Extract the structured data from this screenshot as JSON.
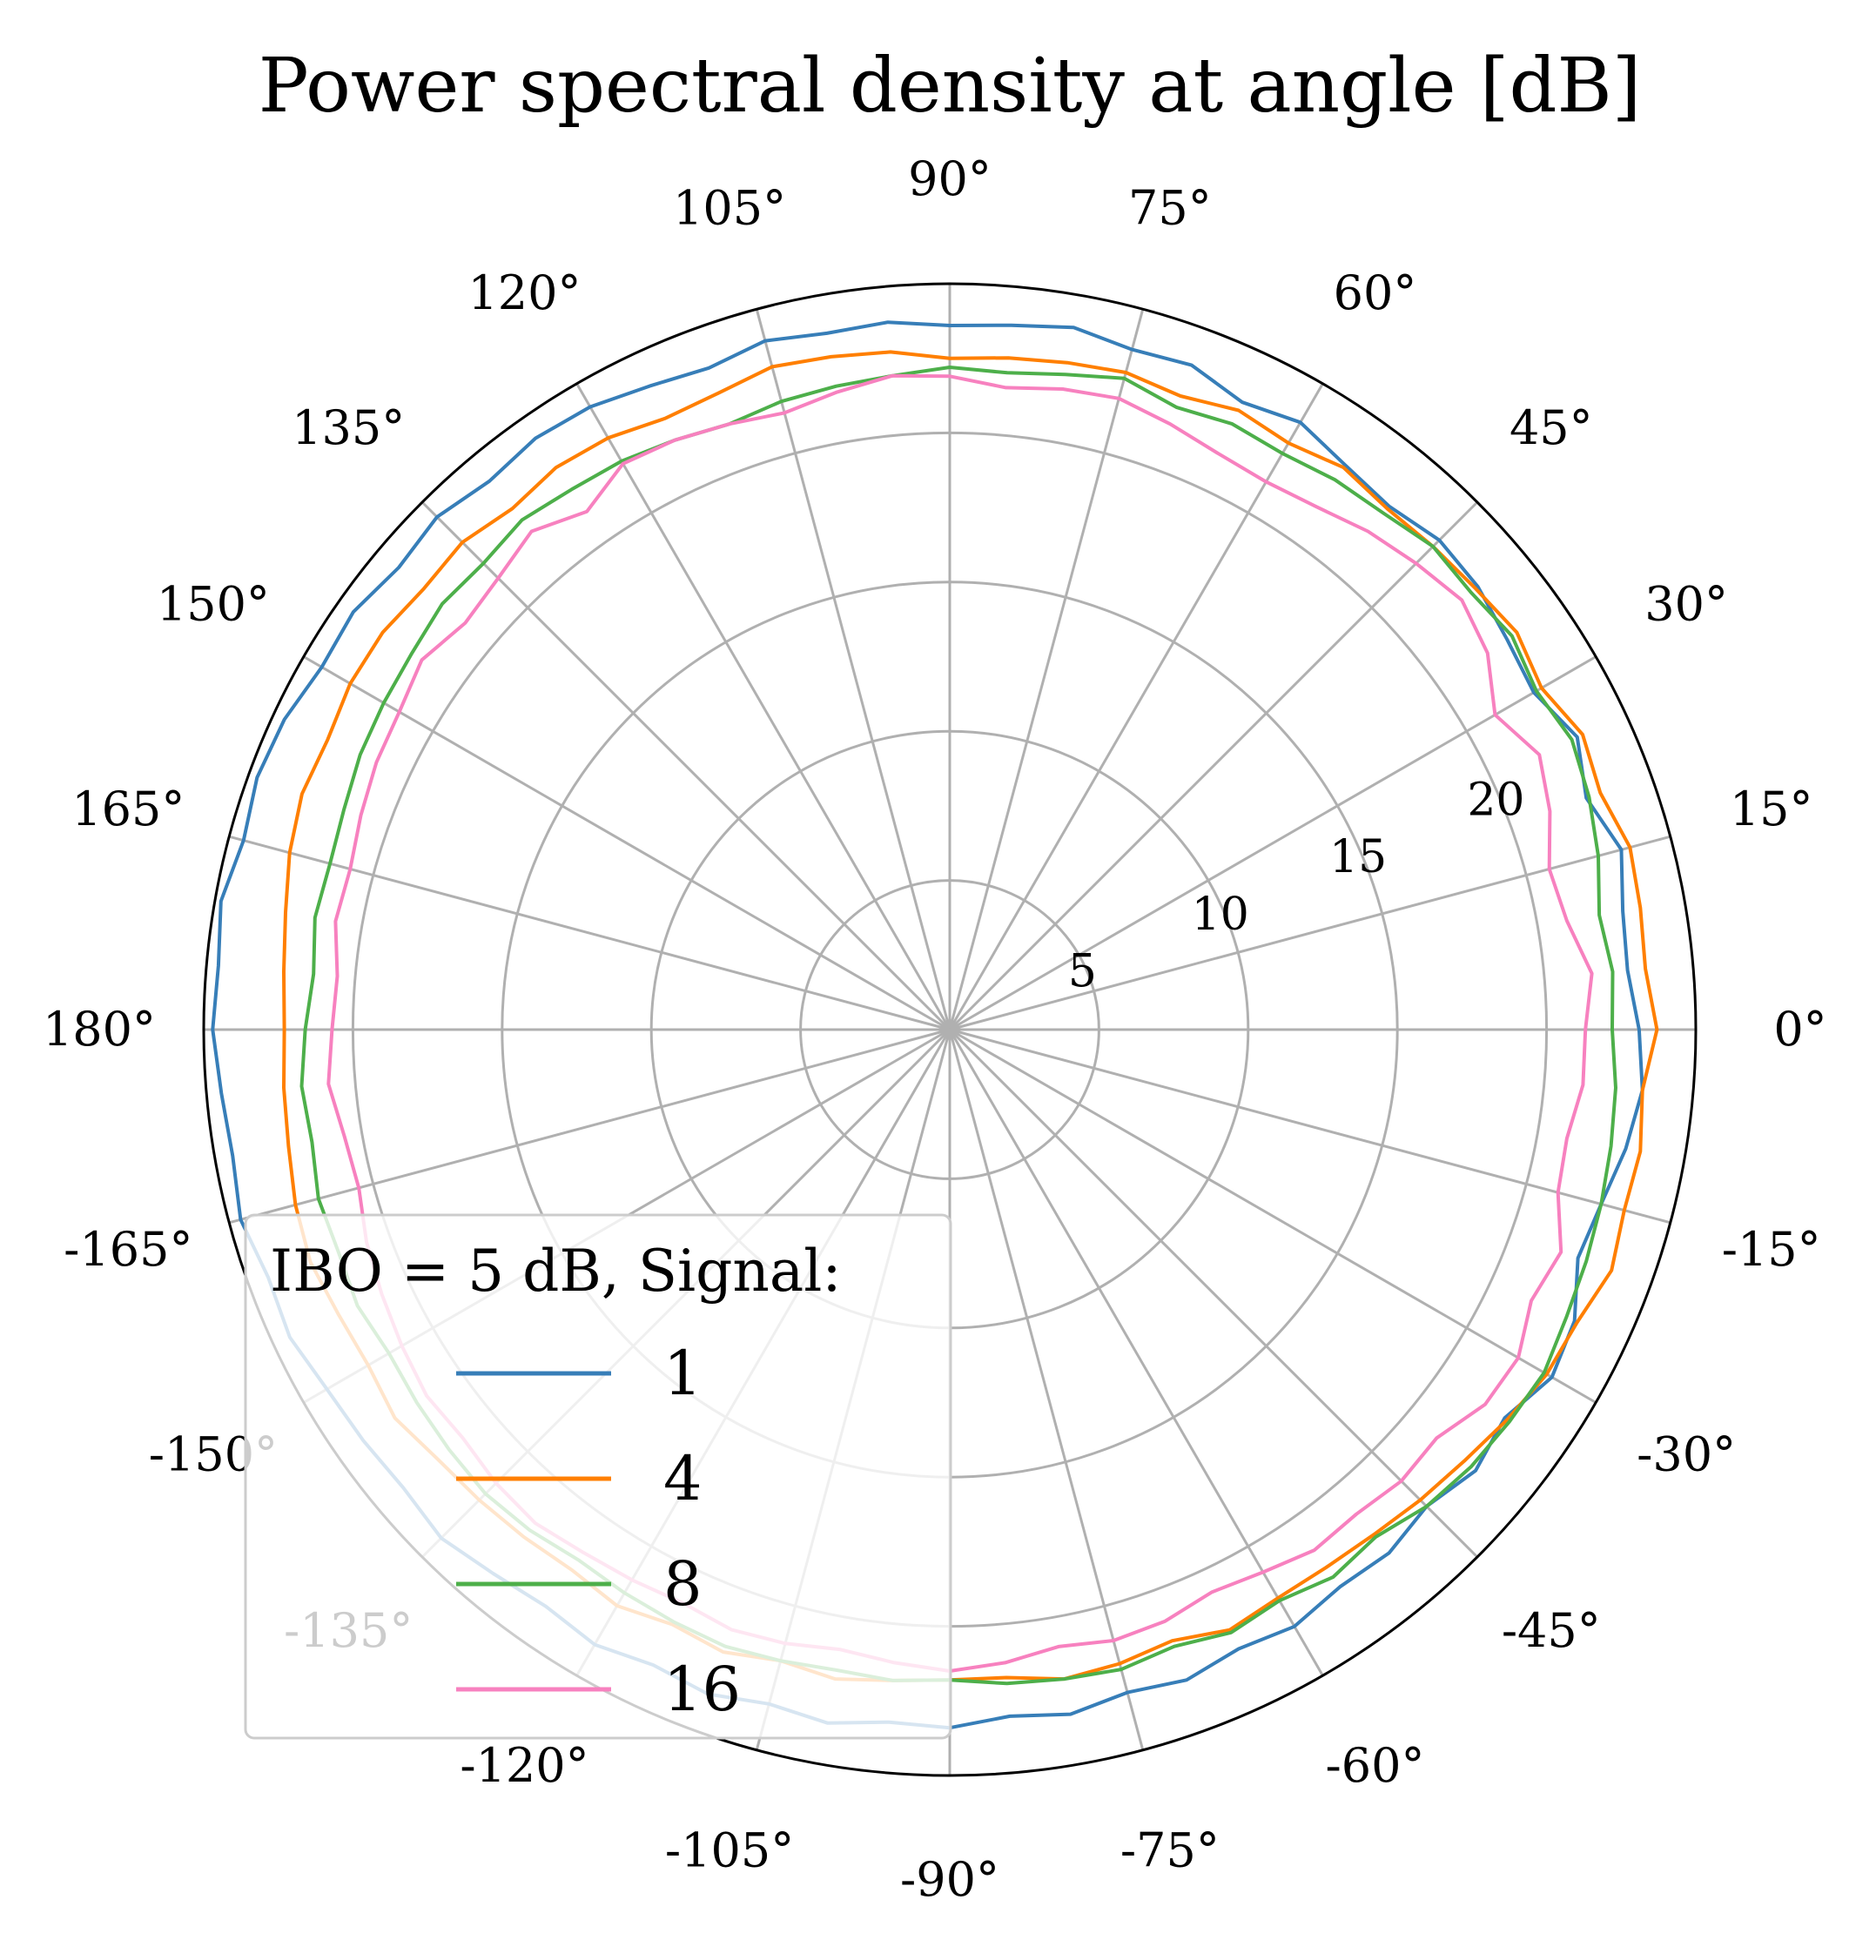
{
  "chart_data": {
    "type": "polar-line",
    "title": "Power spectral density at angle [dB]",
    "theta_unit": "degrees",
    "theta_range": [
      -90,
      90
    ],
    "r_range": [
      0,
      25
    ],
    "r_ticks": [
      {
        "value": 5,
        "label": "5"
      },
      {
        "value": 10,
        "label": "10"
      },
      {
        "value": 15,
        "label": "15"
      },
      {
        "value": 20,
        "label": "20"
      }
    ],
    "theta_ticks": [
      {
        "value": 0,
        "label": "0°"
      },
      {
        "value": 15,
        "label": "15°"
      },
      {
        "value": 30,
        "label": "30°"
      },
      {
        "value": 45,
        "label": "45°"
      },
      {
        "value": 60,
        "label": "60°"
      },
      {
        "value": 75,
        "label": "75°"
      },
      {
        "value": 90,
        "label": "90°"
      },
      {
        "value": 105,
        "label": "105°"
      },
      {
        "value": 120,
        "label": "120°"
      },
      {
        "value": 135,
        "label": "135°"
      },
      {
        "value": 150,
        "label": "150°"
      },
      {
        "value": 165,
        "label": "165°"
      },
      {
        "value": 180,
        "label": "180°"
      },
      {
        "value": -165,
        "label": "-165°"
      },
      {
        "value": -150,
        "label": "-150°"
      },
      {
        "value": -135,
        "label": "-135°"
      },
      {
        "value": -120,
        "label": "-120°"
      },
      {
        "value": -105,
        "label": "-105°"
      },
      {
        "value": -90,
        "label": "-90°"
      },
      {
        "value": -75,
        "label": "-75°"
      },
      {
        "value": -60,
        "label": "-60°"
      },
      {
        "value": -45,
        "label": "-45°"
      },
      {
        "value": -30,
        "label": "-30°"
      },
      {
        "value": -15,
        "label": "-15°"
      }
    ],
    "grid": true,
    "legend": {
      "title": "IBO = 5 dB, Signal:",
      "position": "lower-left"
    },
    "theta": [
      -90,
      -85,
      -80,
      -75,
      -70,
      -65,
      -60,
      -55,
      -50,
      -45,
      -40,
      -35,
      -30,
      -25,
      -20,
      -15,
      -10,
      -5,
      0,
      5,
      10,
      15,
      20,
      25,
      30,
      35,
      40,
      45,
      50,
      55,
      60,
      65,
      70,
      75,
      80,
      85,
      90,
      95,
      100,
      105,
      110,
      115,
      120,
      125,
      130,
      135,
      140,
      145,
      150,
      155,
      160,
      165,
      170,
      175,
      180,
      185,
      190,
      195,
      200,
      205,
      210,
      215,
      220,
      225,
      230,
      235,
      240,
      245,
      250,
      255,
      260,
      265,
      270
    ],
    "series": [
      {
        "name": "1",
        "color": "#377eb8",
        "values": [
          23.4,
          23.1,
          23.3,
          23.0,
          23.2,
          22.9,
          23.1,
          22.8,
          22.9,
          22.6,
          23.0,
          22.7,
          23.3,
          23.1,
          22.4,
          22.6,
          23.0,
          23.3,
          23.1,
          22.8,
          22.9,
          23.3,
          22.7,
          23.2,
          22.6,
          22.8,
          23.1,
          23.2,
          22.9,
          23.1,
          23.5,
          23.2,
          23.7,
          23.6,
          23.9,
          23.7,
          23.6,
          23.8,
          23.7,
          23.9,
          23.6,
          23.8,
          24.1,
          24.2,
          24.0,
          24.3,
          24.1,
          24.4,
          24.3,
          24.6,
          24.7,
          24.5,
          24.8,
          24.6,
          24.7,
          24.5,
          24.4,
          24.6,
          24.3,
          24.4,
          24.1,
          24.0,
          23.9,
          24.1,
          23.8,
          23.6,
          23.8,
          23.5,
          23.7,
          23.4,
          23.6,
          23.3,
          23.4
        ]
      },
      {
        "name": "4",
        "color": "#ff7f00",
        "values": [
          21.8,
          21.8,
          22.1,
          22.0,
          21.8,
          22.2,
          22.0,
          22.0,
          22.1,
          22.3,
          22.5,
          22.8,
          23.1,
          23.2,
          23.6,
          23.4,
          23.5,
          23.3,
          23.7,
          23.4,
          23.5,
          23.6,
          23.2,
          23.4,
          22.9,
          23.2,
          23.0,
          22.9,
          22.8,
          23.0,
          22.7,
          22.9,
          22.6,
          22.8,
          22.7,
          22.6,
          22.5,
          22.8,
          22.9,
          23.0,
          22.7,
          22.6,
          22.9,
          23.0,
          22.8,
          23.1,
          23.0,
          23.2,
          23.2,
          23.0,
          23.1,
          22.9,
          22.6,
          22.4,
          22.3,
          22.4,
          22.5,
          22.7,
          22.8,
          22.6,
          22.5,
          22.7,
          22.4,
          22.3,
          22.2,
          22.1,
          22.3,
          22.0,
          22.2,
          21.9,
          22.1,
          21.9,
          21.8
        ]
      },
      {
        "name": "8",
        "color": "#4daf4a",
        "values": [
          21.8,
          22.0,
          22.1,
          22.2,
          22.0,
          22.3,
          22.1,
          22.4,
          22.2,
          22.6,
          22.8,
          22.9,
          23.0,
          22.8,
          22.7,
          22.6,
          22.5,
          22.4,
          22.2,
          22.3,
          22.1,
          22.5,
          22.8,
          23.0,
          22.7,
          23.0,
          22.8,
          22.9,
          22.6,
          22.5,
          22.3,
          22.4,
          22.2,
          22.6,
          22.3,
          22.1,
          22.2,
          22.0,
          21.9,
          21.8,
          21.6,
          21.8,
          22.0,
          22.1,
          22.3,
          22.1,
          22.2,
          22.0,
          21.9,
          21.8,
          21.6,
          21.5,
          21.6,
          21.4,
          21.6,
          21.8,
          21.7,
          21.9,
          21.8,
          21.9,
          21.7,
          21.8,
          21.9,
          22.0,
          21.9,
          21.7,
          21.8,
          21.9,
          22.0,
          21.9,
          21.8,
          21.9,
          21.8
        ]
      },
      {
        "name": "16",
        "color": "#f781bf",
        "values": [
          21.5,
          21.3,
          21.0,
          21.2,
          21.1,
          20.8,
          21.0,
          21.3,
          21.2,
          21.4,
          21.3,
          21.9,
          22.0,
          21.5,
          21.8,
          21.1,
          21.0,
          21.3,
          21.3,
          21.6,
          21.0,
          20.8,
          21.4,
          21.8,
          21.1,
          22.0,
          22.4,
          22.1,
          21.8,
          21.4,
          21.2,
          21.3,
          21.6,
          21.9,
          21.8,
          21.6,
          21.9,
          22.0,
          21.7,
          21.4,
          21.6,
          21.8,
          21.9,
          21.2,
          21.8,
          21.4,
          21.2,
          21.6,
          21.3,
          21.2,
          21.0,
          20.8,
          20.9,
          20.6,
          20.7,
          20.9,
          20.6,
          20.5,
          20.8,
          21.0,
          21.2,
          21.4,
          21.3,
          21.5,
          21.6,
          21.4,
          21.3,
          21.2,
          21.4,
          21.3,
          21.1,
          21.3,
          21.5
        ]
      }
    ]
  }
}
